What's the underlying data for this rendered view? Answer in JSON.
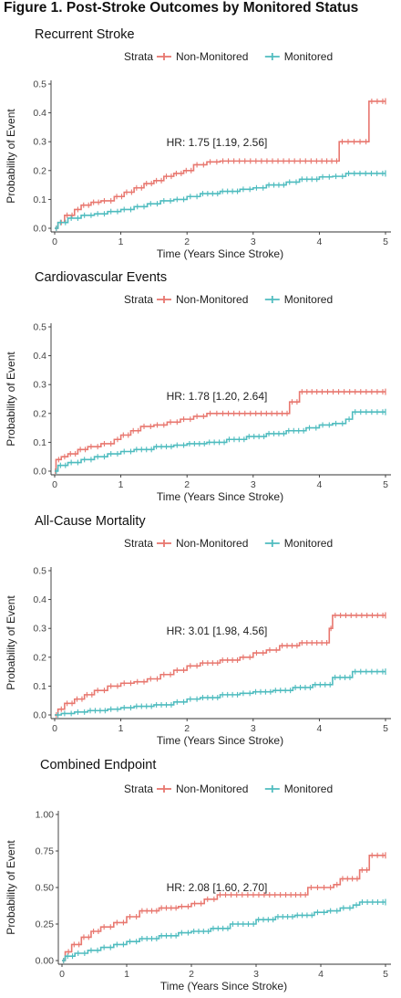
{
  "figure_title": "Figure 1. Post-Stroke Outcomes by Monitored Status",
  "colors": {
    "non_monitored": "#e8776f",
    "monitored": "#4fbcbf",
    "axis": "#333333",
    "text": "#222222"
  },
  "chart_data": [
    {
      "type": "line",
      "subtype": "kaplan-meier cumulative incidence (step)",
      "title": "Recurrent Stroke",
      "xlabel": "Time (Years Since Stroke)",
      "ylabel": "Probability of Event",
      "xlim": [
        0,
        5
      ],
      "ylim": [
        0,
        0.5
      ],
      "xticks": [
        0,
        1,
        2,
        3,
        4,
        5
      ],
      "yticks": [
        "0.0",
        "0.1",
        "0.2",
        "0.3",
        "0.4",
        "0.5"
      ],
      "ytick_values": [
        0,
        0.1,
        0.2,
        0.3,
        0.4,
        0.5
      ],
      "legend": {
        "title": "Strata",
        "position": "top"
      },
      "annotation": "HR: 1.75 [1.19, 2.56]",
      "series": [
        {
          "name": "Non-Monitored",
          "color": "#e8776f",
          "x": [
            0,
            0.05,
            0.15,
            0.3,
            0.4,
            0.55,
            0.7,
            0.9,
            1.05,
            1.2,
            1.35,
            1.5,
            1.65,
            1.8,
            1.95,
            2.1,
            2.3,
            2.5,
            3.0,
            3.5,
            4.0,
            4.3,
            4.75,
            5.0
          ],
          "y": [
            0,
            0.02,
            0.045,
            0.065,
            0.08,
            0.09,
            0.095,
            0.11,
            0.125,
            0.14,
            0.155,
            0.165,
            0.18,
            0.19,
            0.2,
            0.22,
            0.23,
            0.233,
            0.233,
            0.233,
            0.233,
            0.3,
            0.44,
            0.44
          ]
        },
        {
          "name": "Monitored",
          "color": "#4fbcbf",
          "x": [
            0,
            0.05,
            0.2,
            0.4,
            0.6,
            0.8,
            1.0,
            1.2,
            1.4,
            1.6,
            1.8,
            2.0,
            2.2,
            2.5,
            2.8,
            3.0,
            3.2,
            3.5,
            3.7,
            4.0,
            4.2,
            4.4,
            5.0
          ],
          "y": [
            0,
            0.02,
            0.035,
            0.045,
            0.05,
            0.058,
            0.065,
            0.075,
            0.085,
            0.095,
            0.1,
            0.11,
            0.12,
            0.128,
            0.135,
            0.14,
            0.15,
            0.16,
            0.17,
            0.178,
            0.18,
            0.19,
            0.19
          ]
        }
      ]
    },
    {
      "type": "line",
      "subtype": "kaplan-meier cumulative incidence (step)",
      "title": "Cardiovascular Events",
      "xlabel": "Time (Years Since Stroke)",
      "ylabel": "Probability of Event",
      "xlim": [
        0,
        5
      ],
      "ylim": [
        0,
        0.5
      ],
      "xticks": [
        0,
        1,
        2,
        3,
        4,
        5
      ],
      "yticks": [
        "0.0",
        "0.1",
        "0.2",
        "0.3",
        "0.4",
        "0.5"
      ],
      "ytick_values": [
        0,
        0.1,
        0.2,
        0.3,
        0.4,
        0.5
      ],
      "legend": {
        "title": "Strata",
        "position": "top"
      },
      "annotation": "HR: 1.78 [1.20, 2.64]",
      "series": [
        {
          "name": "Non-Monitored",
          "color": "#e8776f",
          "x": [
            0,
            0.02,
            0.1,
            0.2,
            0.35,
            0.5,
            0.7,
            0.9,
            1.0,
            1.15,
            1.3,
            1.5,
            1.7,
            1.9,
            2.1,
            2.3,
            2.5,
            3.0,
            3.4,
            3.55,
            3.7,
            4.0,
            5.0
          ],
          "y": [
            0,
            0.04,
            0.05,
            0.06,
            0.075,
            0.085,
            0.095,
            0.11,
            0.125,
            0.14,
            0.155,
            0.16,
            0.17,
            0.18,
            0.19,
            0.2,
            0.2,
            0.2,
            0.2,
            0.24,
            0.275,
            0.275,
            0.275
          ]
        },
        {
          "name": "Monitored",
          "color": "#4fbcbf",
          "x": [
            0,
            0.05,
            0.2,
            0.4,
            0.6,
            0.8,
            1.0,
            1.2,
            1.5,
            1.8,
            2.0,
            2.3,
            2.6,
            2.9,
            3.2,
            3.5,
            3.8,
            4.0,
            4.2,
            4.4,
            4.5,
            5.0
          ],
          "y": [
            0,
            0.02,
            0.03,
            0.04,
            0.05,
            0.06,
            0.068,
            0.075,
            0.085,
            0.09,
            0.095,
            0.1,
            0.11,
            0.12,
            0.13,
            0.14,
            0.15,
            0.16,
            0.165,
            0.18,
            0.205,
            0.205
          ]
        }
      ]
    },
    {
      "type": "line",
      "subtype": "kaplan-meier cumulative incidence (step)",
      "title": "All-Cause Mortality",
      "xlabel": "Time (Years Since Stroke)",
      "ylabel": "Probability of Event",
      "xlim": [
        0,
        5
      ],
      "ylim": [
        0,
        0.5
      ],
      "xticks": [
        0,
        1,
        2,
        3,
        4,
        5
      ],
      "yticks": [
        "0.0",
        "0.1",
        "0.2",
        "0.3",
        "0.4",
        "0.5"
      ],
      "ytick_values": [
        0,
        0.1,
        0.2,
        0.3,
        0.4,
        0.5
      ],
      "legend": {
        "title": "Strata",
        "position": "top"
      },
      "annotation": "HR: 3.01 [1.98, 4.56]",
      "series": [
        {
          "name": "Non-Monitored",
          "color": "#e8776f",
          "x": [
            0,
            0.05,
            0.15,
            0.3,
            0.45,
            0.6,
            0.8,
            1.0,
            1.2,
            1.4,
            1.6,
            1.8,
            2.0,
            2.2,
            2.5,
            2.8,
            3.0,
            3.2,
            3.4,
            3.7,
            4.0,
            4.15,
            4.2,
            5.0
          ],
          "y": [
            0,
            0.02,
            0.04,
            0.055,
            0.07,
            0.085,
            0.1,
            0.11,
            0.115,
            0.125,
            0.14,
            0.155,
            0.17,
            0.18,
            0.19,
            0.2,
            0.215,
            0.225,
            0.24,
            0.25,
            0.25,
            0.3,
            0.345,
            0.345
          ]
        },
        {
          "name": "Monitored",
          "color": "#4fbcbf",
          "x": [
            0,
            0.1,
            0.3,
            0.5,
            0.8,
            1.0,
            1.2,
            1.5,
            1.8,
            2.0,
            2.2,
            2.5,
            2.8,
            3.0,
            3.3,
            3.6,
            3.9,
            4.2,
            4.5,
            5.0
          ],
          "y": [
            0,
            0.005,
            0.01,
            0.015,
            0.02,
            0.025,
            0.03,
            0.035,
            0.045,
            0.055,
            0.06,
            0.07,
            0.075,
            0.08,
            0.085,
            0.095,
            0.105,
            0.13,
            0.15,
            0.15
          ]
        }
      ]
    },
    {
      "type": "line",
      "subtype": "kaplan-meier cumulative incidence (step)",
      "title": "Combined Endpoint",
      "xlabel": "Time (Years Since Stroke)",
      "ylabel": "Probability of Event",
      "xlim": [
        0,
        5
      ],
      "ylim": [
        0,
        1.0
      ],
      "xticks": [
        0,
        1,
        2,
        3,
        4,
        5
      ],
      "yticks": [
        "0.00",
        "0.25",
        "0.50",
        "0.75",
        "1.00"
      ],
      "ytick_values": [
        0,
        0.25,
        0.5,
        0.75,
        1.0
      ],
      "legend": {
        "title": "Strata",
        "position": "top"
      },
      "annotation": "HR: 2.08 [1.60, 2.70]",
      "series": [
        {
          "name": "Non-Monitored",
          "color": "#e8776f",
          "x": [
            0,
            0.05,
            0.15,
            0.3,
            0.45,
            0.6,
            0.8,
            1.0,
            1.2,
            1.5,
            1.8,
            2.0,
            2.2,
            2.4,
            3.0,
            3.5,
            3.8,
            4.0,
            4.2,
            4.3,
            4.6,
            4.75,
            5.0
          ],
          "y": [
            0,
            0.06,
            0.11,
            0.16,
            0.2,
            0.23,
            0.26,
            0.3,
            0.34,
            0.36,
            0.37,
            0.39,
            0.42,
            0.45,
            0.45,
            0.45,
            0.5,
            0.5,
            0.52,
            0.56,
            0.62,
            0.72,
            0.72
          ]
        },
        {
          "name": "Monitored",
          "color": "#4fbcbf",
          "x": [
            0,
            0.05,
            0.2,
            0.4,
            0.6,
            0.8,
            1.0,
            1.2,
            1.5,
            1.8,
            2.0,
            2.3,
            2.6,
            3.0,
            3.3,
            3.6,
            3.9,
            4.1,
            4.3,
            4.5,
            4.6,
            5.0
          ],
          "y": [
            0,
            0.03,
            0.05,
            0.07,
            0.09,
            0.11,
            0.13,
            0.15,
            0.17,
            0.19,
            0.2,
            0.22,
            0.25,
            0.28,
            0.3,
            0.31,
            0.33,
            0.34,
            0.36,
            0.38,
            0.4,
            0.4
          ]
        }
      ]
    }
  ]
}
